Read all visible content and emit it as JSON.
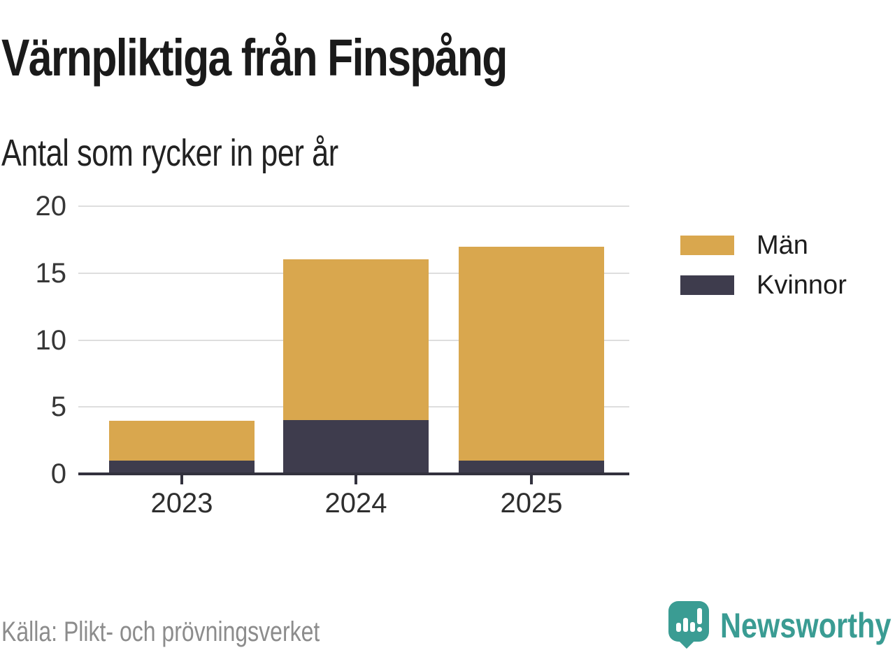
{
  "title": "Värnpliktiga från Finspång",
  "subtitle": "Antal som rycker in per år",
  "source": "Källa: Plikt- och prövningsverket",
  "brand": {
    "name": "Newsworthy",
    "color": "#3a9c93"
  },
  "colors": {
    "men": "#d9a74e",
    "women": "#3e3c4d",
    "grid": "#dedede",
    "axis": "#33323e",
    "title_text": "#1a1a1a",
    "muted_text": "#8c8c8c"
  },
  "chart_data": {
    "type": "bar",
    "stacked": true,
    "title": "Värnpliktiga från Finspång",
    "subtitle": "Antal som rycker in per år",
    "categories": [
      "2023",
      "2024",
      "2025"
    ],
    "series": [
      {
        "name": "Män",
        "key": "men",
        "color": "#d9a74e",
        "values": [
          3,
          12,
          16
        ]
      },
      {
        "name": "Kvinnor",
        "key": "women",
        "color": "#3e3c4d",
        "values": [
          1,
          4,
          1
        ]
      }
    ],
    "stacked_totals": [
      4,
      16,
      17
    ],
    "ylim": [
      0,
      20
    ],
    "yticks": [
      0,
      5,
      10,
      15,
      20
    ],
    "grid": true,
    "legend_position": "right",
    "source": "Källa: Plikt- och prövningsverket"
  }
}
